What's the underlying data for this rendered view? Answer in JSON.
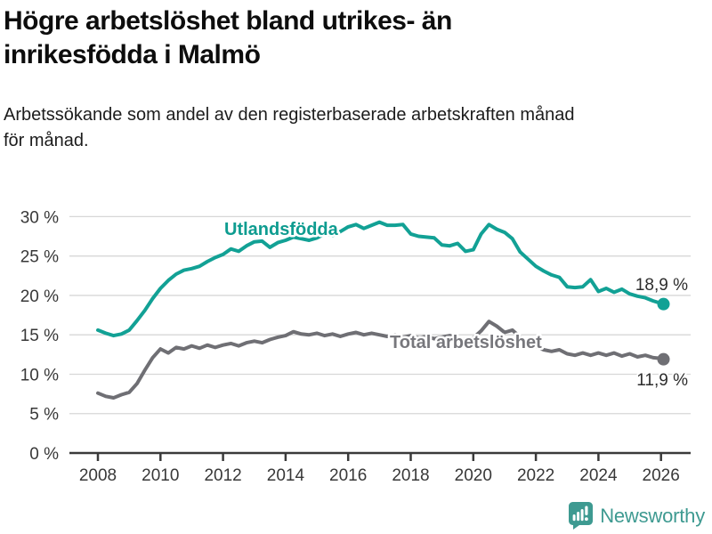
{
  "header": {
    "title": "Högre arbetslöshet bland utrikes- än\ninrikesfödda i Malmö",
    "subtitle": "Arbetssökande som andel av den registerbaserade arbetskraften månad\nför månad."
  },
  "chart_data": {
    "type": "line",
    "title": "Högre arbetslöshet bland utrikes- än inrikesfödda i Malmö",
    "subtitle": "Arbetssökande som andel av den registerbaserade arbetskraften månad för månad.",
    "grid": "horizontal",
    "legend_position": "inline-labels",
    "xlim": [
      2008,
      2026.08
    ],
    "ylim": [
      0,
      30
    ],
    "xticks": [
      2008,
      2010,
      2012,
      2014,
      2016,
      2018,
      2020,
      2022,
      2024,
      2026
    ],
    "ytick_values": [
      0,
      5,
      10,
      15,
      20,
      25,
      30
    ],
    "ytick_labels": [
      "0 %",
      "5 %",
      "10 %",
      "15 %",
      "20 %",
      "25 %",
      "30 %"
    ],
    "x": [
      2008,
      2008.25,
      2008.5,
      2008.75,
      2009,
      2009.25,
      2009.5,
      2009.75,
      2010,
      2010.25,
      2010.5,
      2010.75,
      2011,
      2011.25,
      2011.5,
      2011.75,
      2012,
      2012.25,
      2012.5,
      2012.75,
      2013,
      2013.25,
      2013.5,
      2013.75,
      2014,
      2014.25,
      2014.5,
      2014.75,
      2015,
      2015.25,
      2015.5,
      2015.75,
      2016,
      2016.25,
      2016.5,
      2016.75,
      2017,
      2017.25,
      2017.5,
      2017.75,
      2018,
      2018.25,
      2018.5,
      2018.75,
      2019,
      2019.25,
      2019.5,
      2019.75,
      2020,
      2020.25,
      2020.5,
      2020.75,
      2021,
      2021.25,
      2021.5,
      2021.75,
      2022,
      2022.25,
      2022.5,
      2022.75,
      2023,
      2023.25,
      2023.5,
      2023.75,
      2024,
      2024.25,
      2024.5,
      2024.75,
      2025,
      2025.25,
      2025.5,
      2025.75,
      2026,
      2026.08
    ],
    "series": [
      {
        "name": "Utlandsfödda",
        "color": "#12a195",
        "label_color": "#0e9c90",
        "end_label": "18,9 %",
        "end_value": 18.9,
        "values": [
          15.6,
          15.2,
          14.9,
          15.1,
          15.6,
          16.8,
          18.1,
          19.6,
          20.9,
          21.9,
          22.7,
          23.2,
          23.4,
          23.7,
          24.3,
          24.8,
          25.2,
          25.9,
          25.6,
          26.3,
          26.8,
          26.9,
          26.1,
          26.7,
          27.0,
          27.4,
          27.2,
          27.0,
          27.3,
          27.8,
          27.6,
          28.1,
          28.7,
          29.0,
          28.5,
          28.9,
          29.3,
          28.9,
          28.9,
          29.0,
          27.8,
          27.5,
          27.4,
          27.3,
          26.4,
          26.3,
          26.6,
          25.6,
          25.8,
          27.8,
          29.0,
          28.4,
          28.0,
          27.2,
          25.5,
          24.6,
          23.7,
          23.1,
          22.6,
          22.3,
          21.1,
          21.0,
          21.1,
          22.0,
          20.5,
          20.9,
          20.4,
          20.8,
          20.2,
          19.9,
          19.7,
          19.3,
          19.0,
          18.9
        ]
      },
      {
        "name": "Total arbetslöshet",
        "color": "#6f6f74",
        "label_color": "#77777c",
        "end_label": "11,9 %",
        "end_value": 11.9,
        "values": [
          7.6,
          7.2,
          7.0,
          7.4,
          7.7,
          8.8,
          10.5,
          12.1,
          13.2,
          12.7,
          13.4,
          13.2,
          13.6,
          13.3,
          13.7,
          13.4,
          13.7,
          13.9,
          13.6,
          14.0,
          14.2,
          14.0,
          14.4,
          14.7,
          14.9,
          15.4,
          15.1,
          15.0,
          15.2,
          14.9,
          15.1,
          14.8,
          15.1,
          15.3,
          15.0,
          15.2,
          15.0,
          14.8,
          15.0,
          14.7,
          14.9,
          14.6,
          14.8,
          14.5,
          14.7,
          14.9,
          14.6,
          14.3,
          14.6,
          15.5,
          16.7,
          16.1,
          15.3,
          15.6,
          14.7,
          14.0,
          13.5,
          13.1,
          12.9,
          13.1,
          12.6,
          12.4,
          12.7,
          12.4,
          12.7,
          12.4,
          12.7,
          12.3,
          12.6,
          12.2,
          12.4,
          12.1,
          12.0,
          11.9
        ]
      }
    ]
  },
  "footer": {
    "brand": "Newsworthy",
    "brand_color": "#3e9a91",
    "logo_color": "#3e9a91"
  }
}
